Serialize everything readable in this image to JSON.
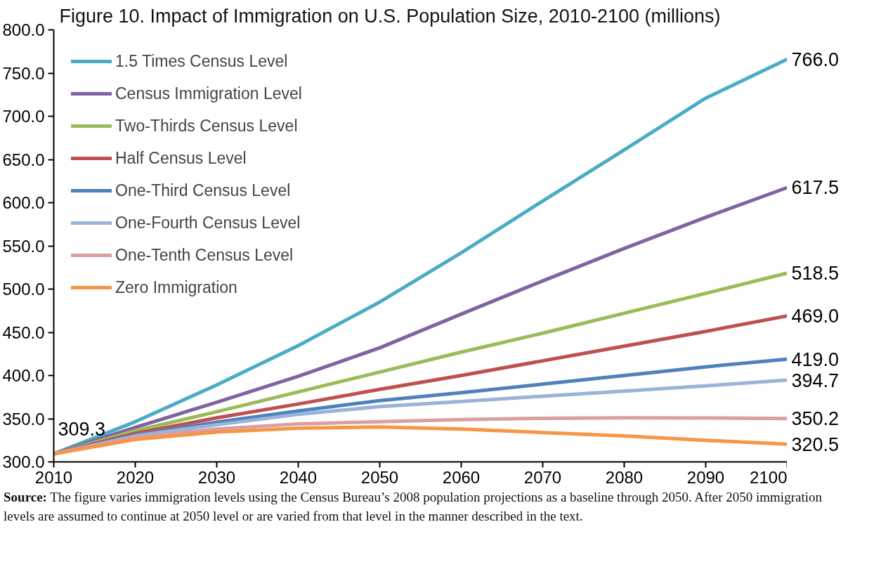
{
  "chart_data": {
    "type": "line",
    "title": "Figure 10. Impact of Immigration on U.S. Population Size, 2010-2100 (millions)",
    "x": [
      2010,
      2020,
      2030,
      2040,
      2050,
      2060,
      2070,
      2080,
      2090,
      2100
    ],
    "xlim": [
      2010,
      2100
    ],
    "xticks": [
      2010,
      2020,
      2030,
      2040,
      2050,
      2060,
      2070,
      2080,
      2090,
      2100
    ],
    "ylim": [
      300,
      800
    ],
    "yticks": [
      {
        "value": 300,
        "label": "300.0"
      },
      {
        "value": 350,
        "label": "350.0"
      },
      {
        "value": 400,
        "label": "400.0"
      },
      {
        "value": 450,
        "label": "450.0"
      },
      {
        "value": 500,
        "label": "500.0"
      },
      {
        "value": 550,
        "label": "550.0"
      },
      {
        "value": 600,
        "label": "600.0"
      },
      {
        "value": 650,
        "label": "650.0"
      },
      {
        "value": 700,
        "label": "700.0"
      },
      {
        "value": 750,
        "label": "750.0"
      },
      {
        "value": 800,
        "label": "800.0"
      }
    ],
    "grid": false,
    "legend": "top left",
    "marker": "none",
    "line_style": "solid",
    "series": [
      {
        "name": "1.5 Times Census Level",
        "color": "#4bacc6",
        "values": [
          309.3,
          346.5,
          389,
          434.6,
          485,
          542,
          602,
          661,
          721,
          766.0
        ],
        "value_labels": [
          null,
          null,
          null,
          null,
          null,
          null,
          null,
          null,
          null,
          "766.0"
        ]
      },
      {
        "name": "Census Immigration Level",
        "color": "#8064a2",
        "values": [
          309.3,
          340,
          369,
          399,
          432,
          471,
          509.5,
          547,
          583,
          617.5
        ],
        "value_labels": [
          null,
          null,
          null,
          null,
          null,
          null,
          null,
          null,
          null,
          "617.5"
        ]
      },
      {
        "name": "Two-Thirds Census Level",
        "color": "#9bbb59",
        "values": [
          309.3,
          336,
          358,
          381,
          404,
          427,
          449,
          472,
          495,
          518.5
        ],
        "value_labels": [
          null,
          null,
          null,
          null,
          null,
          null,
          null,
          null,
          null,
          "518.5"
        ]
      },
      {
        "name": "Half Census Level",
        "color": "#c0504d",
        "values": [
          309.3,
          333,
          351,
          367,
          384,
          400,
          417,
          434,
          451,
          469.0
        ],
        "value_labels": [
          null,
          null,
          null,
          null,
          null,
          null,
          null,
          null,
          null,
          "469.0"
        ]
      },
      {
        "name": "One-Third Census Level",
        "color": "#4f81bd",
        "values": [
          309.3,
          331,
          346,
          359,
          371,
          380,
          390,
          400,
          410,
          419.0
        ],
        "value_labels": [
          null,
          null,
          null,
          null,
          null,
          null,
          null,
          null,
          null,
          "419.0"
        ]
      },
      {
        "name": "One-Fourth Census Level",
        "color": "#9bb3d9",
        "values": [
          309.3,
          330,
          343,
          355,
          364,
          370,
          376,
          382,
          388,
          394.7
        ],
        "value_labels": [
          null,
          null,
          null,
          null,
          null,
          null,
          null,
          null,
          null,
          "394.7"
        ]
      },
      {
        "name": "One-Tenth Census Level",
        "color": "#d9a0a0",
        "values": [
          309.3,
          328,
          338,
          344,
          346.5,
          349,
          350.5,
          351,
          350.8,
          350.2
        ],
        "value_labels": [
          null,
          null,
          null,
          null,
          null,
          null,
          null,
          null,
          null,
          "350.2"
        ]
      },
      {
        "name": "Zero Immigration",
        "color": "#f79646",
        "values": [
          309.3,
          326,
          334.5,
          339,
          340.5,
          338,
          334,
          330,
          325,
          320.5
        ],
        "value_labels": [
          "309.3",
          null,
          null,
          null,
          null,
          null,
          null,
          null,
          null,
          "320.5"
        ]
      }
    ],
    "annotations": [
      "Source: The figure varies immigration levels using the Census Bureau’s 2008 population projections as a baseline through 2050. After 2050 immigration levels are assumed to continue at 2050 level or are varied from that level in the manner described in the text."
    ]
  }
}
